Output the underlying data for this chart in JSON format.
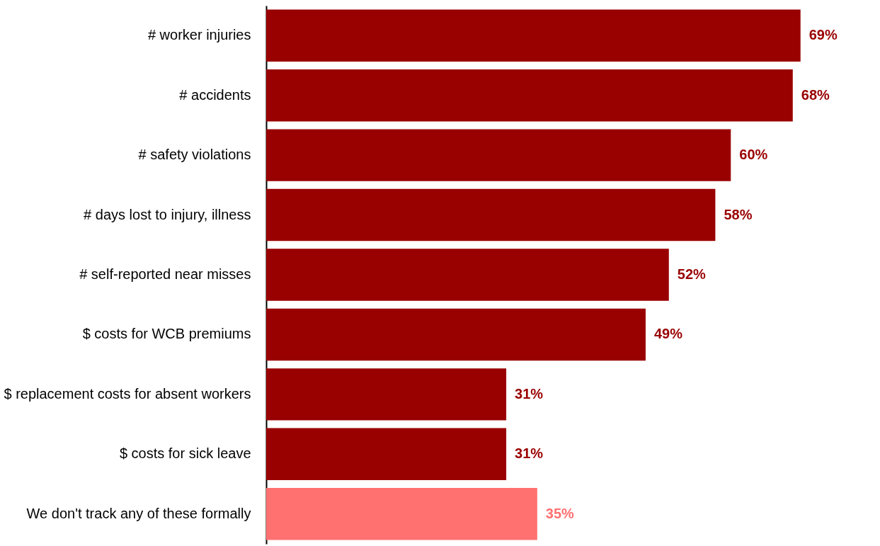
{
  "chart_data": {
    "type": "bar",
    "orientation": "horizontal",
    "categories": [
      "# worker injuries",
      "# accidents",
      "# safety violations",
      "# days lost to injury, illness",
      "# self-reported near misses",
      "$ costs for WCB premiums",
      "$ replacement costs for absent workers",
      "$ costs for sick leave",
      "We don't track any of these formally"
    ],
    "values": [
      69,
      68,
      60,
      58,
      52,
      49,
      31,
      31,
      35
    ],
    "colors": [
      "#990000",
      "#990000",
      "#990000",
      "#990000",
      "#990000",
      "#990000",
      "#990000",
      "#990000",
      "#ff7070"
    ],
    "value_labels": [
      "69%",
      "68%",
      "60%",
      "58%",
      "52%",
      "49%",
      "31%",
      "31%",
      "35%"
    ]
  }
}
